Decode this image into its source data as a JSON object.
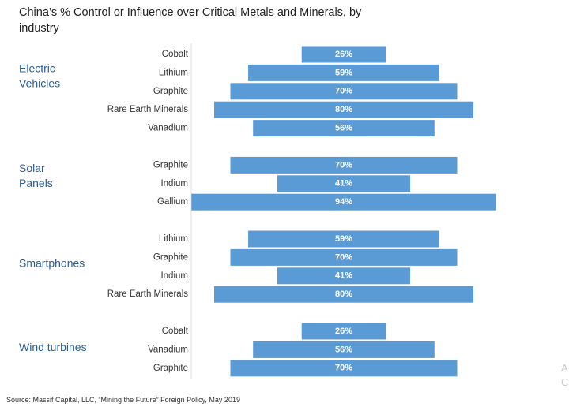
{
  "chart_data": {
    "type": "bar",
    "orientation": "horizontal-centered",
    "title": "China’s % Control or Influence over Critical Metals and Minerals, by industry",
    "value_suffix": "%",
    "xlim": [
      0,
      100
    ],
    "grid": false,
    "groups": [
      {
        "name": "Electric Vehicles",
        "lines": [
          "Electric",
          "Vehicles"
        ],
        "categories": [
          "Cobalt",
          "Lithium",
          "Graphite",
          "Rare Earth Minerals",
          "Vanadium"
        ],
        "values": [
          26,
          59,
          70,
          80,
          56
        ],
        "value_labels": [
          "26%",
          "59%",
          "70%",
          "80%",
          "56%"
        ]
      },
      {
        "name": "Solar Panels",
        "lines": [
          "Solar",
          "Panels"
        ],
        "categories": [
          "Graphite",
          "Indium",
          "Gallium"
        ],
        "values": [
          70,
          41,
          94
        ],
        "value_labels": [
          "70%",
          "41%",
          "94%"
        ]
      },
      {
        "name": "Smartphones",
        "lines": [
          "Smartphones"
        ],
        "categories": [
          "Lithium",
          "Graphite",
          "Indium",
          "Rare Earth Minerals"
        ],
        "values": [
          59,
          70,
          41,
          80
        ],
        "value_labels": [
          "59%",
          "70%",
          "41%",
          "80%"
        ]
      },
      {
        "name": "Wind turbines",
        "lines": [
          "Wind turbines"
        ],
        "categories": [
          "Cobalt",
          "Vanadium",
          "Graphite"
        ],
        "values": [
          26,
          56,
          70
        ],
        "value_labels": [
          "26%",
          "56%",
          "70%"
        ]
      }
    ],
    "colors": {
      "bar": "#5b9bd5",
      "group_label": "#2c5d8f"
    }
  },
  "source": "Source: Massif Capital, LLC, “Mining the Future” Foreign Policy, May 2019",
  "edge_marks": [
    "A",
    "C"
  ]
}
